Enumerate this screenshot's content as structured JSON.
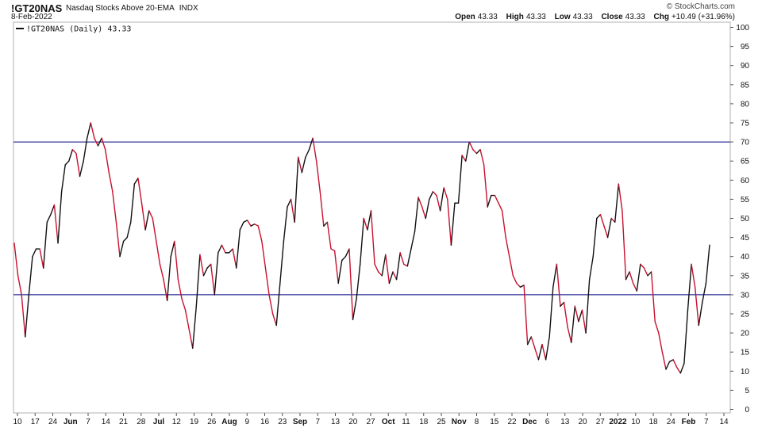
{
  "header": {
    "symbol": "!GT20NAS",
    "description": "Nasdaq Stocks Above 20-EMA",
    "exchange": "INDX",
    "date": "8-Feb-2022",
    "brand": "© StockCharts.com",
    "open_label": "Open",
    "open": "43.33",
    "high_label": "High",
    "high": "43.33",
    "low_label": "Low",
    "low": "43.33",
    "close_label": "Close",
    "close": "43.33",
    "chg_label": "Chg",
    "chg": "+10.49 (+31.96%)"
  },
  "colors": {
    "up": "#111111",
    "down": "#c8102e",
    "reference_line": "#000080",
    "frame": "#b0b0b0",
    "grid": "none"
  },
  "chart_data": {
    "type": "line",
    "legend": "!GT20NAS (Daily) 43.33",
    "legend_placement": "top-left",
    "ylim": [
      0,
      100
    ],
    "y_ticks": [
      0,
      5,
      10,
      15,
      20,
      25,
      30,
      35,
      40,
      45,
      50,
      55,
      60,
      65,
      70,
      75,
      80,
      85,
      90,
      95,
      100
    ],
    "y_tick_labels": [
      "0",
      "5",
      "10",
      "15",
      "20",
      "25",
      "30",
      "35",
      "40",
      "45",
      "50",
      "55",
      "60",
      "65",
      "70",
      "75",
      "80",
      "85",
      "90",
      "95",
      "100"
    ],
    "reference_lines": [
      70,
      30
    ],
    "grid": false,
    "x_tick_labels": [
      "10",
      "17",
      "24",
      "Jun",
      "7",
      "14",
      "21",
      "28",
      "Jul",
      "12",
      "19",
      "26",
      "Aug",
      "9",
      "16",
      "23",
      "Sep",
      "7",
      "13",
      "20",
      "27",
      "Oct",
      "11",
      "18",
      "25",
      "Nov",
      "8",
      "15",
      "22",
      "Dec",
      "6",
      "13",
      "20",
      "27",
      "2022",
      "10",
      "18",
      "24",
      "Feb",
      "7",
      "14"
    ],
    "bold_x_tick_labels": [
      "Jun",
      "Jul",
      "Aug",
      "Sep",
      "Oct",
      "Nov",
      "Dec",
      "2022",
      "Feb"
    ],
    "series": [
      {
        "values": [
          43.5,
          35,
          30,
          19,
          30,
          40,
          42,
          42,
          37,
          49,
          51,
          53.5,
          43.5,
          57,
          64,
          65,
          68,
          67,
          61,
          65,
          71,
          75,
          71,
          69,
          71,
          68,
          62,
          57,
          49,
          40,
          44,
          45,
          49,
          59,
          60.5,
          54,
          47,
          52,
          50,
          44,
          38,
          34,
          28.5,
          40,
          44,
          34,
          29,
          26,
          21,
          16,
          27,
          40.5,
          35,
          37,
          38,
          30,
          41,
          43,
          41,
          41,
          42,
          37,
          47,
          49,
          49.5,
          48,
          48.5,
          48,
          44,
          37,
          30,
          25,
          22,
          33,
          44,
          53,
          55,
          49,
          66,
          62,
          66,
          68,
          71,
          65,
          57,
          48,
          49,
          42,
          41.5,
          33,
          39,
          40,
          42,
          23.5,
          29,
          38,
          50,
          47,
          52,
          38,
          36,
          35,
          40.5,
          33,
          36,
          34,
          41,
          38,
          37.5,
          42,
          46.5,
          55.5,
          53,
          50,
          55,
          57,
          56,
          52,
          58,
          55,
          43,
          54,
          54,
          66.5,
          65,
          70,
          68,
          67,
          68,
          64,
          53,
          56,
          56,
          54,
          52,
          45,
          40,
          35,
          33,
          32,
          32.5,
          17,
          19,
          16,
          13,
          17,
          13,
          19,
          32,
          38,
          27,
          28,
          21.5,
          17.5,
          27,
          23,
          26,
          20,
          34,
          40,
          50,
          51,
          48,
          45,
          50,
          49,
          59,
          52,
          34,
          36,
          33,
          31,
          38,
          37,
          35,
          36,
          23,
          20,
          15,
          10.5,
          12.5,
          13,
          11,
          9.5,
          12,
          26,
          38,
          32,
          22,
          28,
          33,
          43
        ]
      }
    ]
  }
}
